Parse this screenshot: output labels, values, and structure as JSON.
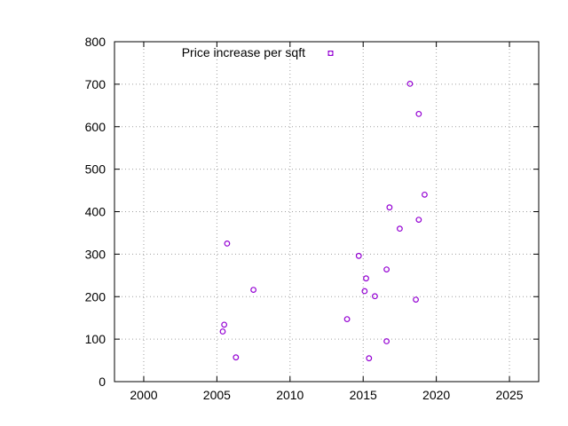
{
  "chart_data": {
    "type": "scatter",
    "title": "",
    "xlabel": "",
    "ylabel": "",
    "xlim": [
      1998,
      2027
    ],
    "ylim": [
      0,
      800
    ],
    "x_ticks": [
      2000,
      2005,
      2010,
      2015,
      2020,
      2025
    ],
    "y_ticks": [
      0,
      100,
      200,
      300,
      400,
      500,
      600,
      700,
      800
    ],
    "x_tick_labels": [
      "2000",
      "2005",
      "2010",
      "2015",
      "2020",
      "2025"
    ],
    "y_tick_labels": [
      "0",
      "100",
      "200",
      "300",
      "400",
      "500",
      "600",
      "700",
      "800"
    ],
    "grid": true,
    "legend_position": "top-left",
    "series": [
      {
        "name": "Price increase per sqft",
        "color": "#9400d3",
        "marker": "open-circle",
        "points": [
          {
            "x": 2005.4,
            "y": 118
          },
          {
            "x": 2005.5,
            "y": 134
          },
          {
            "x": 2005.7,
            "y": 325
          },
          {
            "x": 2006.3,
            "y": 57
          },
          {
            "x": 2007.5,
            "y": 216
          },
          {
            "x": 2013.9,
            "y": 147
          },
          {
            "x": 2014.7,
            "y": 296
          },
          {
            "x": 2015.1,
            "y": 213
          },
          {
            "x": 2015.2,
            "y": 243
          },
          {
            "x": 2015.4,
            "y": 55
          },
          {
            "x": 2015.8,
            "y": 201
          },
          {
            "x": 2016.6,
            "y": 95
          },
          {
            "x": 2016.6,
            "y": 264
          },
          {
            "x": 2016.8,
            "y": 410
          },
          {
            "x": 2017.5,
            "y": 360
          },
          {
            "x": 2018.2,
            "y": 701
          },
          {
            "x": 2018.6,
            "y": 193
          },
          {
            "x": 2018.8,
            "y": 630
          },
          {
            "x": 2018.8,
            "y": 381
          },
          {
            "x": 2019.2,
            "y": 440
          }
        ]
      }
    ]
  }
}
